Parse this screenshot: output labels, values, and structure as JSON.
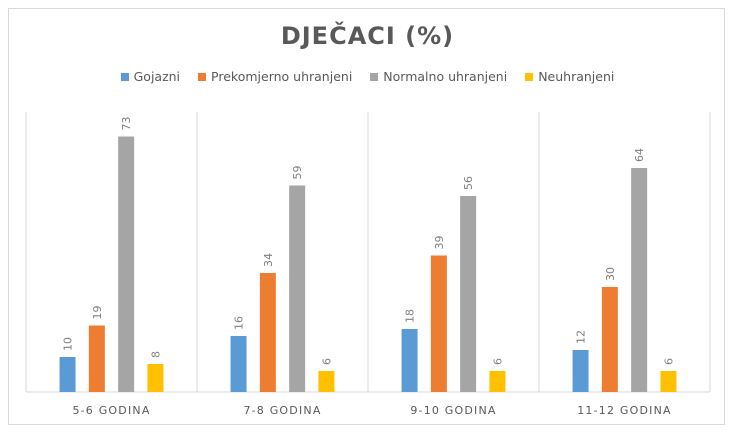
{
  "chart_data": {
    "type": "bar",
    "title": "DJEČACI (%)",
    "categories": [
      "5-6 GODINA",
      "7-8 GODINA",
      "9-10 GODINA",
      "11-12 GODINA"
    ],
    "series": [
      {
        "name": "Gojazni",
        "color": "#5b9bd5",
        "values": [
          10,
          16,
          18,
          12
        ]
      },
      {
        "name": "Prekomjerno uhranjeni",
        "color": "#ed7d31",
        "values": [
          19,
          34,
          39,
          30
        ]
      },
      {
        "name": "Normalno uhranjeni",
        "color": "#a5a5a5",
        "values": [
          73,
          59,
          56,
          64
        ]
      },
      {
        "name": "Neuhranjeni",
        "color": "#ffc000",
        "values": [
          8,
          6,
          6,
          6
        ]
      }
    ],
    "ylim": [
      0,
      80
    ],
    "data_labels": true,
    "legend_position": "top",
    "grid": false
  }
}
